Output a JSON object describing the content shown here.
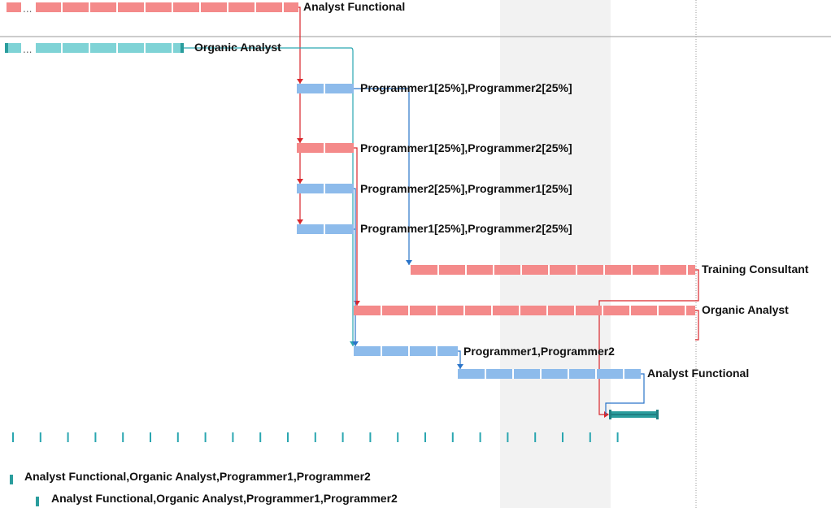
{
  "colors": {
    "red_bar": "#f48a8a",
    "blue_bar": "#8dbbeb",
    "teal_bar": "#7fd3d6",
    "teal_dark": "#2a9d9d",
    "red_line": "#d9262b",
    "blue_line": "#2a74c9",
    "teal_line": "#2aa6b0",
    "weekend_shade": "#f2f2f2"
  },
  "tasks": [
    {
      "id": "t1",
      "label": "Analyst Functional",
      "color": "red_bar"
    },
    {
      "id": "t2",
      "label": "Organic Analyst",
      "color": "teal_bar"
    },
    {
      "id": "t3",
      "label": "Programmer1[25%],Programmer2[25%]",
      "color": "blue_bar"
    },
    {
      "id": "t4",
      "label": "Programmer1[25%],Programmer2[25%]",
      "color": "red_bar"
    },
    {
      "id": "t5",
      "label": "Programmer2[25%],Programmer1[25%]",
      "color": "blue_bar"
    },
    {
      "id": "t6",
      "label": "Programmer1[25%],Programmer2[25%]",
      "color": "blue_bar"
    },
    {
      "id": "t7",
      "label": "Training Consultant",
      "color": "red_bar"
    },
    {
      "id": "t8",
      "label": "Organic Analyst",
      "color": "red_bar"
    },
    {
      "id": "t9",
      "label": "Programmer1,Programmer2",
      "color": "blue_bar"
    },
    {
      "id": "t10",
      "label": "Analyst Functional",
      "color": "blue_bar"
    },
    {
      "id": "t11",
      "label": "",
      "color": "teal_dark"
    }
  ],
  "footer": {
    "resources_line1": "Analyst Functional,Organic Analyst,Programmer1,Programmer2",
    "resources_line2": "Analyst Functional,Organic Analyst,Programmer1,Programmer2"
  }
}
